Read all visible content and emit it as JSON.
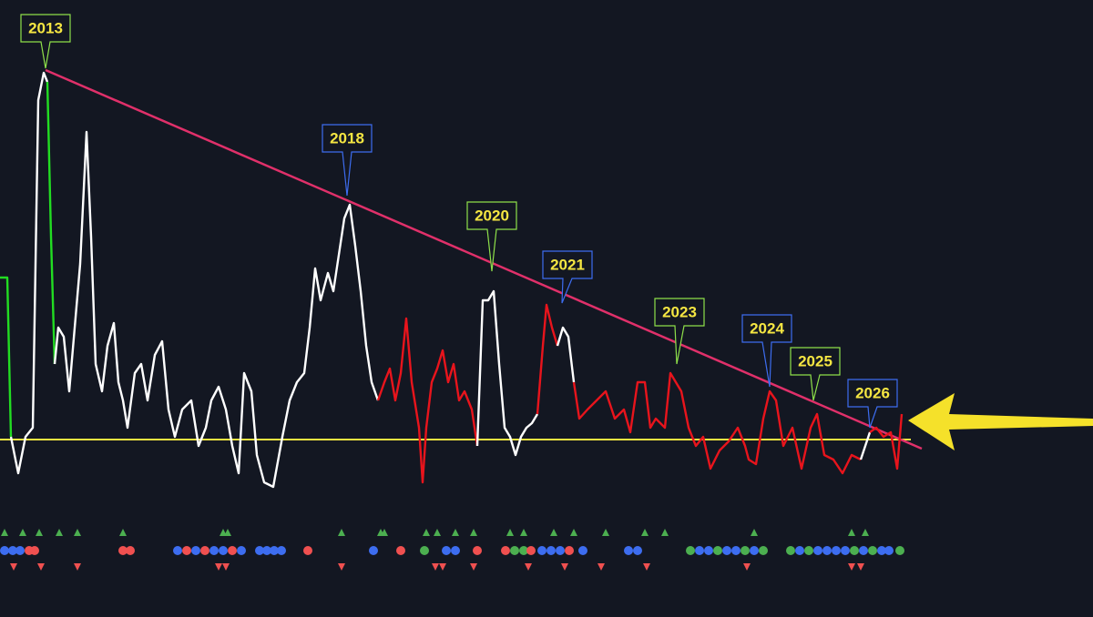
{
  "annotations": [
    "2013",
    "2018",
    "2020",
    "2021",
    "2023",
    "2024",
    "2025",
    "2026"
  ]
}
